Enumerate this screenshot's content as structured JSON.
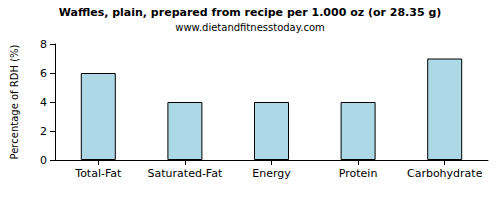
{
  "chart_data": {
    "type": "bar",
    "title": "Waffles, plain, prepared from recipe per 1.000 oz (or 28.35 g)",
    "subtitle": "www.dietandfitnesstoday.com",
    "y_label": "Percentage of RDH (%)",
    "categories": [
      "Total-Fat",
      "Saturated-Fat",
      "Energy",
      "Protein",
      "Carbohydrate"
    ],
    "values": [
      6,
      4,
      4,
      4,
      7
    ],
    "color": "#add8e6",
    "ylim": [
      0,
      8
    ],
    "yticks": [
      0,
      2,
      4,
      6,
      8
    ],
    "grid": false
  }
}
